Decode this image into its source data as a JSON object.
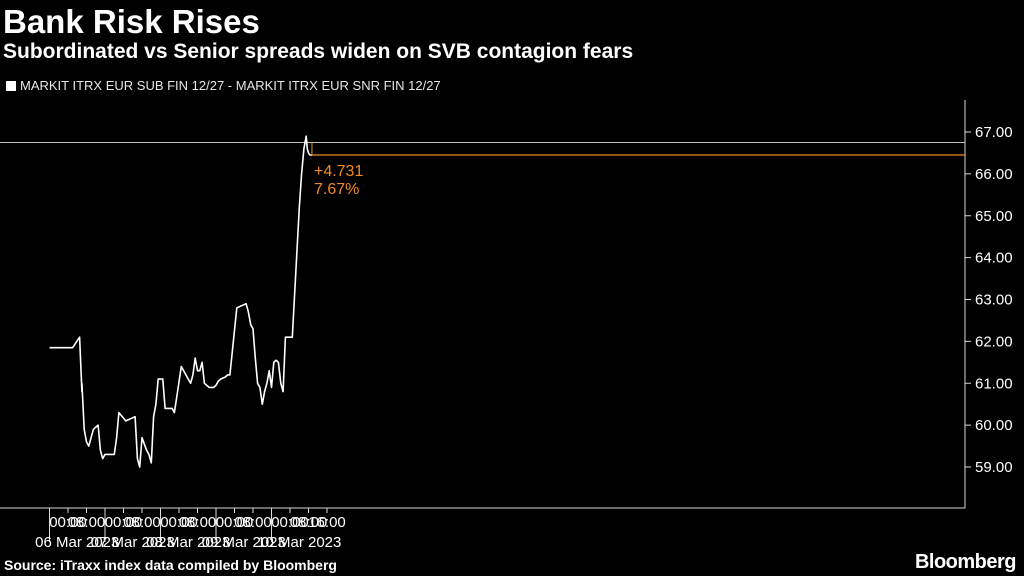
{
  "header": {
    "title": "Bank Risk Rises",
    "subtitle": "Subordinated vs Senior spreads widen on SVB contagion fears"
  },
  "legend": {
    "label": "MARKIT ITRX EUR SUB FIN 12/27 - MARKIT ITRX EUR SNR FIN 12/27",
    "color": "#ffffff"
  },
  "footer": {
    "source": "Source: iTraxx index data compiled by Bloomberg",
    "brand": "Bloomberg"
  },
  "colors": {
    "background": "#000000",
    "line": "#ffffff",
    "annotation": "#f08c1e",
    "axis": "#d8d8d8"
  },
  "chart_data": {
    "type": "line",
    "ylim": [
      58.3,
      67.3
    ],
    "y_ticks": [
      "59.00",
      "60.00",
      "61.00",
      "62.00",
      "63.00",
      "64.00",
      "65.00",
      "66.00",
      "67.00"
    ],
    "x_time_labels": [
      "00:00",
      "08:00",
      "00:00",
      "08:00",
      "00:00",
      "08:00",
      "00:00",
      "08:00",
      "00:00",
      "08:00",
      "16:00"
    ],
    "x_date_labels": [
      "06 Mar 2023",
      "07 Mar 2023",
      "08 Mar 2023",
      "09 Mar 2023",
      "10 Mar 2023"
    ],
    "reference_line": {
      "value": 66.75
    },
    "last_value": 66.45,
    "annotation": {
      "change": "+4.731",
      "percent": "7.67%"
    },
    "series": [
      {
        "x": [
          "05 Mar 16:00",
          "06 Mar 02:00",
          "06 Mar 05:00",
          "06 Mar 06:00",
          "06 Mar 06:00",
          "06 Mar 07:00",
          "06 Mar 08:00",
          "06 Mar 09:00",
          "06 Mar 10:00",
          "06 Mar 11:00",
          "06 Mar 13:00",
          "06 Mar 14:00",
          "06 Mar 15:00",
          "06 Mar 16:00",
          "06 Mar 18:00",
          "06 Mar 20:00",
          "06 Mar 21:00",
          "06 Mar 22:00",
          "07 Mar 01:00",
          "07 Mar 05:00",
          "07 Mar 06:00",
          "07 Mar 07:00",
          "07 Mar 08:00",
          "07 Mar 10:00",
          "07 Mar 11:00",
          "07 Mar 12:00",
          "07 Mar 13:00",
          "07 Mar 14:00",
          "07 Mar 15:00",
          "07 Mar 16:00",
          "07 Mar 17:00",
          "07 Mar 18:00",
          "07 Mar 20:00",
          "07 Mar 21:00",
          "07 Mar 22:00",
          "08 Mar 01:00",
          "08 Mar 05:00",
          "08 Mar 06:00",
          "08 Mar 07:00",
          "08 Mar 08:00",
          "08 Mar 09:00",
          "08 Mar 10:00",
          "08 Mar 11:00",
          "08 Mar 13:00",
          "08 Mar 14:00",
          "08 Mar 15:00",
          "08 Mar 16:00",
          "08 Mar 17:00",
          "08 Mar 18:00",
          "08 Mar 20:00",
          "08 Mar 21:00",
          "08 Mar 22:00",
          "09 Mar 01:00",
          "09 Mar 05:00",
          "09 Mar 06:00",
          "09 Mar 07:00",
          "09 Mar 08:00",
          "09 Mar 09:00",
          "09 Mar 10:00",
          "09 Mar 11:00",
          "09 Mar 12:00",
          "09 Mar 13:00",
          "09 Mar 14:00",
          "09 Mar 15:00",
          "09 Mar 16:00",
          "09 Mar 17:00",
          "09 Mar 18:00",
          "09 Mar 19:00",
          "09 Mar 20:00",
          "09 Mar 21:00",
          "09 Mar 22:00",
          "10 Mar 01:00",
          "10 Mar 04:00",
          "10 Mar 05:00",
          "10 Mar 06:00",
          "10 Mar 07:00",
          "10 Mar 07:30",
          "10 Mar 08:00",
          "10 Mar 08:30",
          "10 Mar 09:00",
          "10 Mar 09:30"
        ],
        "y": [
          61.85,
          61.85,
          62.1,
          60.8,
          61.0,
          59.9,
          59.6,
          59.5,
          59.7,
          59.9,
          60.0,
          59.4,
          59.2,
          59.3,
          59.3,
          59.3,
          59.7,
          60.3,
          60.1,
          60.2,
          59.2,
          59.0,
          59.7,
          59.4,
          59.3,
          59.1,
          60.2,
          60.5,
          61.1,
          61.1,
          61.1,
          60.4,
          60.4,
          60.4,
          60.3,
          61.4,
          61.0,
          61.2,
          61.6,
          61.3,
          61.3,
          61.5,
          61.0,
          60.9,
          60.9,
          60.9,
          60.95,
          61.05,
          61.1,
          61.15,
          61.2,
          61.2,
          62.8,
          62.9,
          62.7,
          62.4,
          62.3,
          61.6,
          61.0,
          60.9,
          60.5,
          60.8,
          61.0,
          61.3,
          60.9,
          61.5,
          61.55,
          61.5,
          61.0,
          60.8,
          62.1,
          62.1,
          65.2,
          66.0,
          66.6,
          66.9,
          66.6,
          66.5,
          66.45,
          66.45,
          66.45
        ]
      }
    ]
  }
}
